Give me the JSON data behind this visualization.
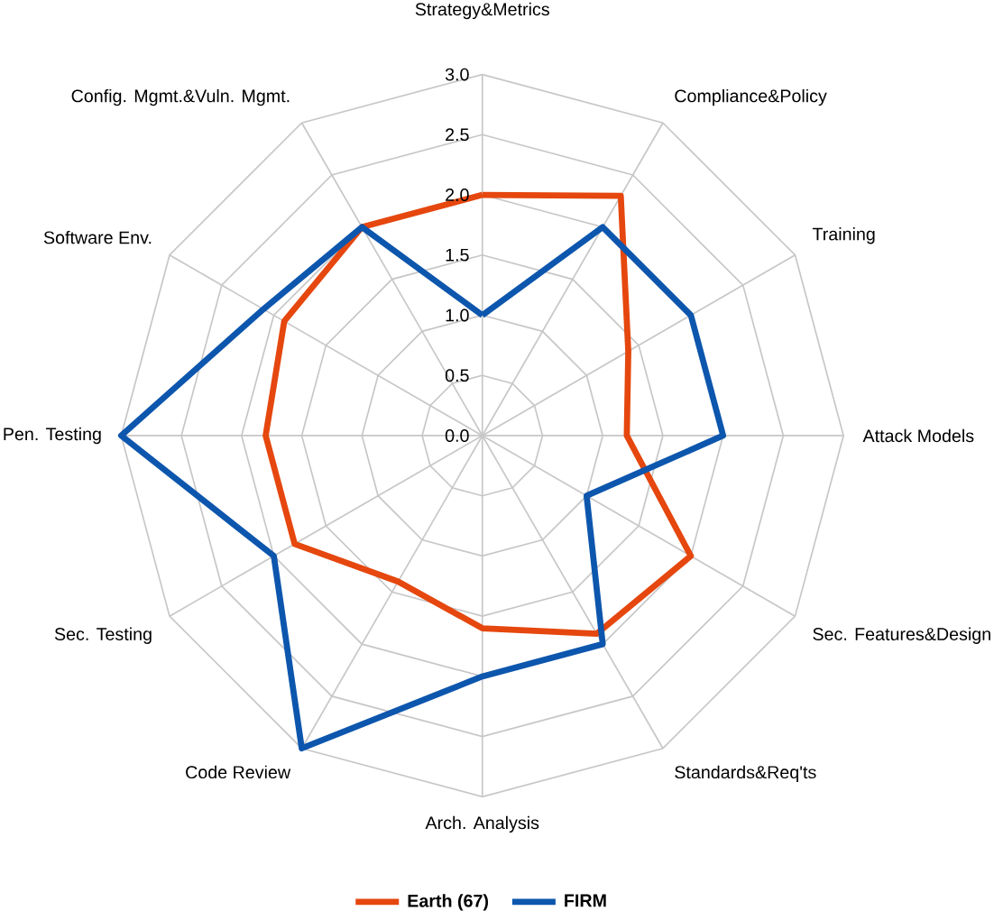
{
  "chart_data": {
    "type": "radar",
    "categories": [
      "Strategy&Metrics",
      "Compliance&Policy",
      "Training",
      "Attack Models",
      "Sec. Features&Design",
      "Standards&Req'ts",
      "Arch. Analysis",
      "Code Review",
      "Sec. Testing",
      "Pen. Testing",
      "Software Env.",
      "Config. Mgmt.&Vuln. Mgmt."
    ],
    "series": [
      {
        "name": "Earth (67)",
        "color": "#e5470e",
        "values": [
          2.0,
          2.3,
          1.4,
          1.2,
          2.0,
          1.9,
          1.6,
          1.4,
          1.8,
          1.8,
          1.9,
          2.0
        ]
      },
      {
        "name": "FIRM",
        "color": "#0d56ad",
        "values": [
          1.0,
          2.0,
          2.0,
          2.0,
          1.0,
          2.0,
          2.0,
          3.0,
          2.0,
          3.0,
          2.1,
          2.0
        ]
      }
    ],
    "ylim": [
      0,
      3.0
    ],
    "yticks": [
      {
        "value": 0,
        "label": "0.0"
      },
      {
        "value": 0.5,
        "label": "0.5"
      },
      {
        "value": 1.0,
        "label": "1.0"
      },
      {
        "value": 1.5,
        "label": "1.5"
      },
      {
        "value": 2.0,
        "label": "2.0"
      },
      {
        "value": 2.5,
        "label": "2.5"
      },
      {
        "value": 3.0,
        "label": "3.0"
      }
    ],
    "grid": true,
    "legend": "bottom"
  }
}
